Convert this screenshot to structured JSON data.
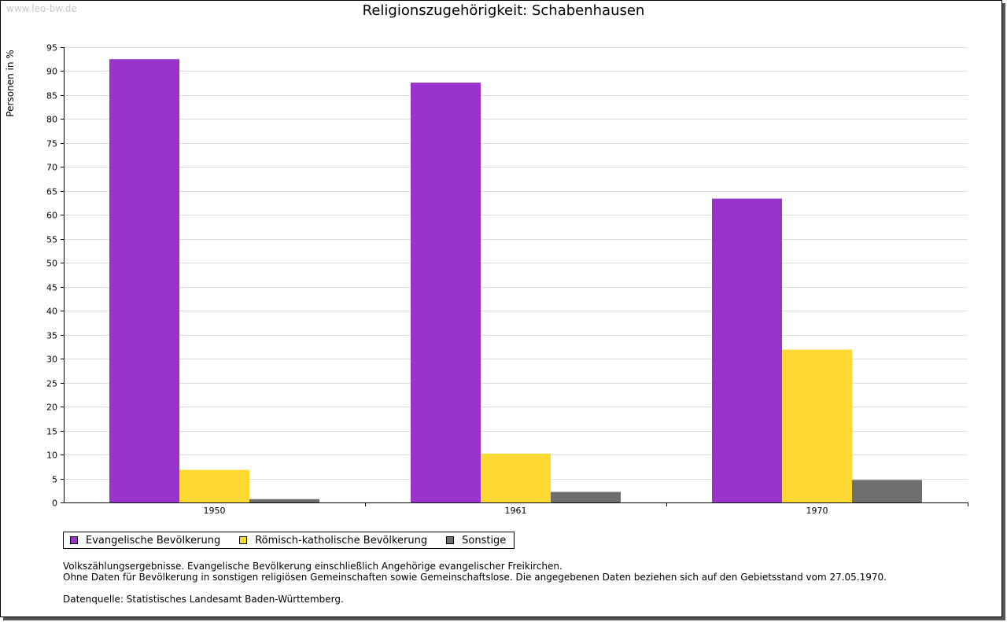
{
  "watermark": "www.leo-bw.de",
  "chart_data": {
    "type": "bar",
    "title": "Religionszugehörigkeit: Schabenhausen",
    "xlabel": "",
    "ylabel": "Personen in %",
    "categories": [
      "1950",
      "1961",
      "1970"
    ],
    "ylim": [
      0,
      95
    ],
    "yticks": [
      0,
      5,
      10,
      15,
      20,
      25,
      30,
      35,
      40,
      45,
      50,
      55,
      60,
      65,
      70,
      75,
      80,
      85,
      90,
      95
    ],
    "grid": true,
    "legend_position": "bottom-left",
    "series": [
      {
        "name": "Evangelische Bevölkerung",
        "color": "#9933CC",
        "values": [
          92.5,
          87.6,
          63.4
        ]
      },
      {
        "name": "Römisch-katholische Bevölkerung",
        "color": "#FFD933",
        "values": [
          6.8,
          10.2,
          31.9
        ]
      },
      {
        "name": "Sonstige",
        "color": "#6E6E6E",
        "values": [
          0.7,
          2.2,
          4.7
        ]
      }
    ]
  },
  "notes": {
    "line1": "Volkszählungsergebnisse. Evangelische Bevölkerung einschließlich Angehörige evangelischer Freikirchen.",
    "line2": "Ohne Daten für Bevölkerung in sonstigen religiösen Gemeinschaften sowie Gemeinschaftslose. Die angegebenen Daten beziehen sich auf den Gebietsstand vom 27.05.1970.",
    "source": "Datenquelle: Statistisches Landesamt Baden-Württemberg."
  }
}
